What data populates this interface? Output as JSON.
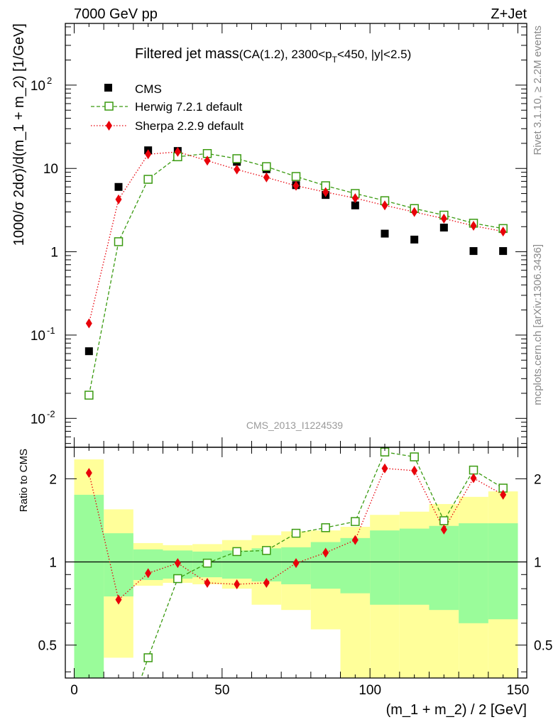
{
  "header": {
    "energy_label": "7000 GeV pp",
    "process_label": "Z+Jet",
    "title_main": "Filtered jet mass",
    "title_cut_a": "(CA(1.2), 2300<p",
    "title_cut_sub": "T",
    "title_cut_b": "<450, |y|<2.5)",
    "analysis_id": "CMS_2013_I1224539",
    "side_label_top": "Rivet 3.1.10, ≥ 2.2M events",
    "side_label_bottom": "mcplots.cern.ch [arXiv:1306.3436]"
  },
  "axes": {
    "ylabel_top": "1000/σ 2dσ)/d(m_1 + m_2) [1/GeV]",
    "ylabel_bottom": "Ratio to CMS",
    "xlabel": "(m_1 + m_2) / 2 [GeV]",
    "x_ticks": [
      "0",
      "50",
      "100",
      "150"
    ],
    "top_y_ticks": [
      {
        "base": "10",
        "exp": "-2"
      },
      {
        "base": "10",
        "exp": "-1"
      },
      {
        "base": "1",
        "exp": ""
      },
      {
        "base": "10",
        "exp": ""
      },
      {
        "base": "10",
        "exp": "2"
      }
    ],
    "bottom_y_ticks": [
      "0.5",
      "1",
      "2"
    ]
  },
  "legend": {
    "cms": "CMS",
    "herwig": "Herwig 7.2.1 default",
    "sherpa": "Sherpa 2.2.9 default"
  },
  "chart_data": {
    "type": "scatter",
    "x_range": [
      -3,
      153
    ],
    "top_y_log_range": [
      0.0045,
      550
    ],
    "bottom_y_log_range": [
      0.38,
      2.6
    ],
    "x_edges": [
      0,
      10,
      20,
      30,
      40,
      50,
      60,
      70,
      80,
      90,
      100,
      110,
      120,
      130,
      140,
      150
    ],
    "x": [
      5,
      15,
      25,
      35,
      45,
      55,
      65,
      75,
      85,
      95,
      105,
      115,
      125,
      135,
      145
    ],
    "series": [
      {
        "name": "CMS",
        "color": "#000000",
        "values": [
          0.064,
          6.0,
          16.5,
          16.2,
          15.2,
          12.0,
          9.8,
          6.3,
          4.8,
          3.6,
          1.65,
          1.4,
          1.95,
          1.02,
          1.02
        ]
      },
      {
        "name": "Herwig 7.2.1 default",
        "color": "#3a9a10",
        "values": [
          0.019,
          1.32,
          7.4,
          13.8,
          15.1,
          13.1,
          10.5,
          8.0,
          6.2,
          5.0,
          4.1,
          3.3,
          2.75,
          2.2,
          1.9
        ],
        "ratio": [
          0.3,
          0.22,
          0.45,
          0.87,
          0.99,
          1.09,
          1.1,
          1.27,
          1.33,
          1.4,
          2.5,
          2.4,
          1.41,
          2.15,
          1.85
        ]
      },
      {
        "name": "Sherpa 2.2.9 default",
        "color": "#e8000a",
        "values": [
          0.138,
          4.25,
          14.8,
          15.8,
          12.4,
          9.7,
          7.8,
          6.2,
          5.2,
          4.4,
          3.6,
          3.0,
          2.5,
          2.05,
          1.75
        ],
        "ratio": [
          2.1,
          0.73,
          0.91,
          0.99,
          0.84,
          0.83,
          0.84,
          0.99,
          1.08,
          1.2,
          2.18,
          2.14,
          1.31,
          2.01,
          1.75
        ]
      }
    ],
    "cms_stat_band": [
      [
        0.3,
        1.75
      ],
      [
        0.75,
        1.27
      ],
      [
        0.86,
        1.11
      ],
      [
        0.87,
        1.1
      ],
      [
        0.88,
        1.09
      ],
      [
        0.87,
        1.1
      ],
      [
        0.85,
        1.12
      ],
      [
        0.83,
        1.13
      ],
      [
        0.8,
        1.18
      ],
      [
        0.77,
        1.22
      ],
      [
        0.7,
        1.3
      ],
      [
        0.7,
        1.32
      ],
      [
        0.67,
        1.35
      ],
      [
        0.6,
        1.38
      ],
      [
        0.62,
        1.38
      ]
    ],
    "cms_total_band": [
      [
        0.3,
        2.35
      ],
      [
        0.45,
        1.55
      ],
      [
        0.82,
        1.17
      ],
      [
        0.84,
        1.15
      ],
      [
        0.83,
        1.16
      ],
      [
        0.8,
        1.2
      ],
      [
        0.7,
        1.25
      ],
      [
        0.67,
        1.29
      ],
      [
        0.57,
        1.3
      ],
      [
        0.38,
        1.34
      ],
      [
        0.38,
        1.48
      ],
      [
        0.38,
        1.52
      ],
      [
        0.38,
        1.62
      ],
      [
        0.38,
        1.72
      ],
      [
        0.38,
        1.8
      ]
    ]
  }
}
